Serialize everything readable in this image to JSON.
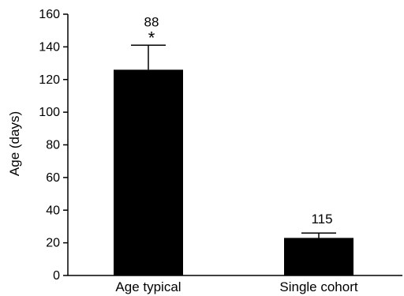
{
  "chart_data": {
    "type": "bar",
    "title": "",
    "xlabel": "",
    "ylabel": "Age (days)",
    "ylim": [
      0,
      160
    ],
    "yticks": [
      0,
      20,
      40,
      60,
      80,
      100,
      120,
      140,
      160
    ],
    "grid": false,
    "categories": [
      "Age typical",
      "Single cohort"
    ],
    "values": [
      126,
      23
    ],
    "error_upper": [
      141,
      26
    ],
    "data_labels": [
      "88",
      "115"
    ],
    "significance": [
      "*",
      ""
    ],
    "bar_color": "#000000"
  }
}
